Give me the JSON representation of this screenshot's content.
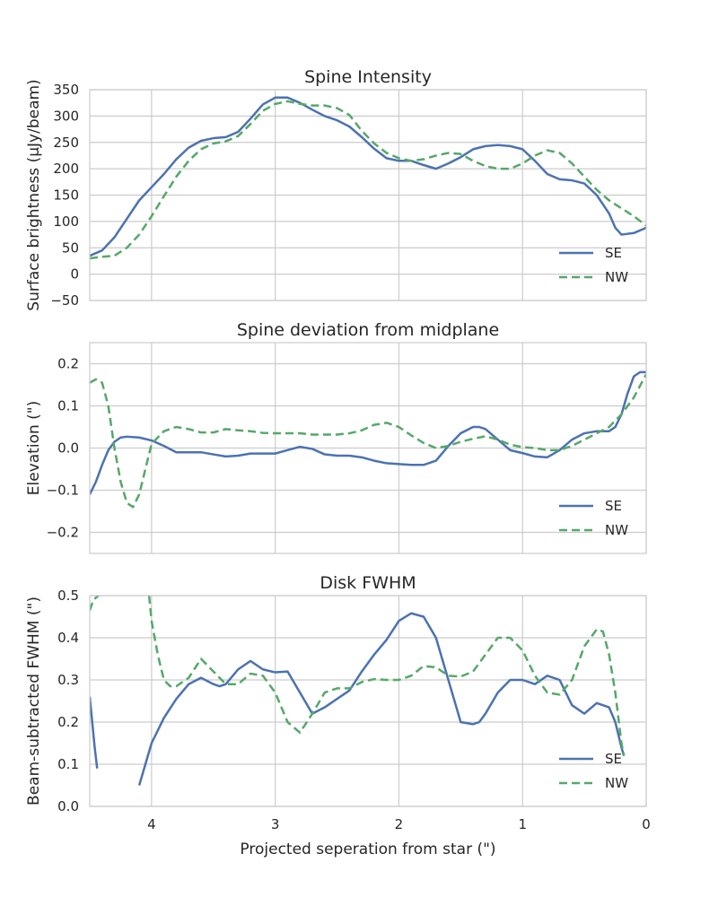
{
  "chart_data": {
    "type": "line",
    "xlabel": "Projected seperation from star (\")",
    "xlim": [
      4.5,
      0
    ],
    "xticks": [
      4,
      3,
      2,
      1,
      0
    ],
    "xtick_labels": [
      "4",
      "3",
      "2",
      "1",
      "0"
    ],
    "grid": true,
    "legend_placement": "lower-right",
    "panels": [
      {
        "title": "Spine Intensity",
        "ylabel": "Surface brightness (μJy/beam)",
        "ylim": [
          -50,
          350
        ],
        "yticks": [
          -50,
          0,
          50,
          100,
          150,
          200,
          250,
          300,
          350
        ],
        "ytick_labels": [
          "−50",
          "0",
          "50",
          "100",
          "150",
          "200",
          "250",
          "300",
          "350"
        ],
        "series": [
          {
            "name": "SE",
            "color": "#4c72b0",
            "dash": "solid",
            "x": [
              4.5,
              4.4,
              4.3,
              4.2,
              4.1,
              4.0,
              3.9,
              3.8,
              3.7,
              3.6,
              3.5,
              3.4,
              3.3,
              3.2,
              3.1,
              3.0,
              2.9,
              2.8,
              2.7,
              2.6,
              2.5,
              2.4,
              2.3,
              2.2,
              2.1,
              2.0,
              1.9,
              1.8,
              1.7,
              1.6,
              1.5,
              1.4,
              1.3,
              1.2,
              1.1,
              1.0,
              0.9,
              0.8,
              0.7,
              0.6,
              0.5,
              0.4,
              0.3,
              0.25,
              0.2,
              0.1,
              0.0
            ],
            "values": [
              35,
              45,
              70,
              105,
              140,
              165,
              190,
              218,
              240,
              253,
              258,
              260,
              270,
              295,
              322,
              335,
              335,
              325,
              312,
              300,
              292,
              280,
              260,
              238,
              220,
              215,
              215,
              207,
              200,
              210,
              222,
              237,
              243,
              245,
              243,
              237,
              215,
              190,
              180,
              178,
              172,
              150,
              115,
              88,
              75,
              78,
              88
            ]
          },
          {
            "name": "NW",
            "color": "#55a868",
            "dash": "dashed",
            "x": [
              4.5,
              4.4,
              4.3,
              4.2,
              4.1,
              4.0,
              3.9,
              3.8,
              3.7,
              3.6,
              3.5,
              3.4,
              3.3,
              3.2,
              3.1,
              3.0,
              2.9,
              2.8,
              2.7,
              2.6,
              2.5,
              2.4,
              2.3,
              2.2,
              2.1,
              2.0,
              1.9,
              1.8,
              1.7,
              1.6,
              1.5,
              1.4,
              1.3,
              1.2,
              1.1,
              1.0,
              0.9,
              0.8,
              0.7,
              0.6,
              0.5,
              0.4,
              0.3,
              0.2,
              0.1,
              0.0
            ],
            "values": [
              30,
              33,
              35,
              50,
              75,
              110,
              148,
              185,
              215,
              237,
              248,
              252,
              262,
              285,
              310,
              323,
              328,
              323,
              320,
              320,
              315,
              302,
              272,
              248,
              230,
              220,
              215,
              218,
              225,
              230,
              228,
              215,
              205,
              200,
              200,
              210,
              225,
              235,
              230,
              210,
              185,
              160,
              140,
              125,
              110,
              92
            ]
          }
        ]
      },
      {
        "title": "Spine deviation from midplane",
        "ylabel": "Elevation (\")",
        "ylim": [
          -0.25,
          0.25
        ],
        "yticks": [
          -0.2,
          -0.1,
          0.0,
          0.1,
          0.2
        ],
        "ytick_labels": [
          "−0.2",
          "−0.1",
          "0.0",
          "0.1",
          "0.2"
        ],
        "series": [
          {
            "name": "SE",
            "color": "#4c72b0",
            "dash": "solid",
            "x": [
              4.5,
              4.45,
              4.4,
              4.35,
              4.3,
              4.25,
              4.2,
              4.1,
              4.0,
              3.9,
              3.8,
              3.7,
              3.6,
              3.5,
              3.4,
              3.3,
              3.2,
              3.1,
              3.0,
              2.9,
              2.8,
              2.7,
              2.6,
              2.5,
              2.4,
              2.3,
              2.2,
              2.1,
              2.0,
              1.9,
              1.8,
              1.7,
              1.6,
              1.5,
              1.4,
              1.35,
              1.3,
              1.2,
              1.1,
              1.0,
              0.9,
              0.8,
              0.7,
              0.6,
              0.5,
              0.4,
              0.3,
              0.25,
              0.2,
              0.15,
              0.1,
              0.05,
              0.0
            ],
            "values": [
              -0.11,
              -0.08,
              -0.04,
              -0.005,
              0.015,
              0.025,
              0.027,
              0.025,
              0.018,
              0.005,
              -0.01,
              -0.01,
              -0.01,
              -0.015,
              -0.02,
              -0.018,
              -0.013,
              -0.013,
              -0.013,
              -0.005,
              0.003,
              -0.002,
              -0.015,
              -0.018,
              -0.018,
              -0.022,
              -0.03,
              -0.036,
              -0.038,
              -0.04,
              -0.04,
              -0.03,
              0.005,
              0.035,
              0.05,
              0.05,
              0.045,
              0.02,
              -0.005,
              -0.012,
              -0.02,
              -0.022,
              -0.005,
              0.02,
              0.035,
              0.04,
              0.04,
              0.05,
              0.08,
              0.13,
              0.17,
              0.18,
              0.18
            ]
          },
          {
            "name": "NW",
            "color": "#55a868",
            "dash": "dashed",
            "x": [
              4.5,
              4.45,
              4.4,
              4.35,
              4.3,
              4.25,
              4.2,
              4.15,
              4.1,
              4.05,
              4.0,
              3.9,
              3.8,
              3.7,
              3.6,
              3.5,
              3.4,
              3.3,
              3.2,
              3.1,
              3.0,
              2.9,
              2.8,
              2.7,
              2.6,
              2.5,
              2.4,
              2.3,
              2.2,
              2.1,
              2.0,
              1.9,
              1.8,
              1.7,
              1.6,
              1.5,
              1.4,
              1.3,
              1.2,
              1.1,
              1.0,
              0.9,
              0.8,
              0.7,
              0.6,
              0.5,
              0.4,
              0.3,
              0.2,
              0.1,
              0.0
            ],
            "values": [
              0.155,
              0.163,
              0.155,
              0.1,
              0.0,
              -0.08,
              -0.13,
              -0.14,
              -0.11,
              -0.05,
              0.01,
              0.04,
              0.05,
              0.045,
              0.037,
              0.037,
              0.045,
              0.042,
              0.04,
              0.036,
              0.035,
              0.035,
              0.035,
              0.032,
              0.032,
              0.032,
              0.035,
              0.042,
              0.055,
              0.06,
              0.05,
              0.03,
              0.012,
              0.0,
              0.005,
              0.015,
              0.022,
              0.028,
              0.02,
              0.008,
              0.002,
              0.0,
              -0.005,
              -0.005,
              0.005,
              0.02,
              0.035,
              0.05,
              0.08,
              0.12,
              0.175
            ]
          }
        ]
      },
      {
        "title": "Disk FWHM",
        "ylabel": "Beam-subtracted FWHM (\")",
        "ylim": [
          0.0,
          0.5
        ],
        "yticks": [
          0.0,
          0.1,
          0.2,
          0.3,
          0.4,
          0.5
        ],
        "ytick_labels": [
          "0.0",
          "0.1",
          "0.2",
          "0.3",
          "0.4",
          "0.5"
        ],
        "series": [
          {
            "name": "SE",
            "color": "#4c72b0",
            "dash": "solid",
            "segments": [
              {
                "x": [
                  4.5,
                  4.48,
                  4.46,
                  4.44
                ],
                "values": [
                  0.26,
                  0.2,
                  0.14,
                  0.09
                ]
              },
              {
                "x": [
                  4.1,
                  4.05,
                  4.0,
                  3.9,
                  3.8,
                  3.7,
                  3.6,
                  3.5,
                  3.45,
                  3.4,
                  3.3,
                  3.2,
                  3.1,
                  3.0,
                  2.9,
                  2.8,
                  2.7,
                  2.6,
                  2.5,
                  2.4,
                  2.3,
                  2.2,
                  2.1,
                  2.0,
                  1.9,
                  1.8,
                  1.7,
                  1.6,
                  1.5,
                  1.4,
                  1.35,
                  1.3,
                  1.2,
                  1.1,
                  1.0,
                  0.9,
                  0.8,
                  0.7,
                  0.6,
                  0.5,
                  0.4,
                  0.3,
                  0.25,
                  0.2,
                  0.18
                ],
                "values": [
                  0.05,
                  0.1,
                  0.15,
                  0.21,
                  0.255,
                  0.29,
                  0.305,
                  0.29,
                  0.285,
                  0.29,
                  0.325,
                  0.345,
                  0.325,
                  0.318,
                  0.32,
                  0.27,
                  0.22,
                  0.235,
                  0.255,
                  0.275,
                  0.32,
                  0.36,
                  0.395,
                  0.44,
                  0.458,
                  0.45,
                  0.4,
                  0.3,
                  0.2,
                  0.195,
                  0.2,
                  0.22,
                  0.27,
                  0.3,
                  0.3,
                  0.29,
                  0.31,
                  0.3,
                  0.24,
                  0.22,
                  0.245,
                  0.235,
                  0.2,
                  0.14,
                  0.12
                ]
              }
            ]
          },
          {
            "name": "NW",
            "color": "#55a868",
            "dash": "dashed",
            "segments": [
              {
                "x": [
                  4.5,
                  4.47,
                  4.43
                ],
                "values": [
                  0.465,
                  0.49,
                  0.5
                ]
              },
              {
                "x": [
                  4.02,
                  4.0,
                  3.95,
                  3.9,
                  3.85,
                  3.8,
                  3.7,
                  3.6,
                  3.5,
                  3.4,
                  3.3,
                  3.2,
                  3.1,
                  3.0,
                  2.9,
                  2.8,
                  2.7,
                  2.6,
                  2.5,
                  2.4,
                  2.3,
                  2.2,
                  2.1,
                  2.0,
                  1.9,
                  1.8,
                  1.7,
                  1.6,
                  1.5,
                  1.4,
                  1.3,
                  1.2,
                  1.1,
                  1.0,
                  0.9,
                  0.8,
                  0.7,
                  0.6,
                  0.5,
                  0.4,
                  0.35,
                  0.3,
                  0.25,
                  0.2,
                  0.18
                ],
                "values": [
                  0.5,
                  0.44,
                  0.36,
                  0.3,
                  0.285,
                  0.285,
                  0.305,
                  0.35,
                  0.32,
                  0.29,
                  0.29,
                  0.315,
                  0.31,
                  0.27,
                  0.2,
                  0.175,
                  0.22,
                  0.27,
                  0.28,
                  0.28,
                  0.295,
                  0.302,
                  0.3,
                  0.3,
                  0.31,
                  0.333,
                  0.33,
                  0.31,
                  0.308,
                  0.32,
                  0.36,
                  0.4,
                  0.4,
                  0.37,
                  0.31,
                  0.27,
                  0.265,
                  0.3,
                  0.38,
                  0.42,
                  0.415,
                  0.36,
                  0.27,
                  0.15,
                  0.12
                ]
              }
            ]
          }
        ]
      }
    ]
  }
}
